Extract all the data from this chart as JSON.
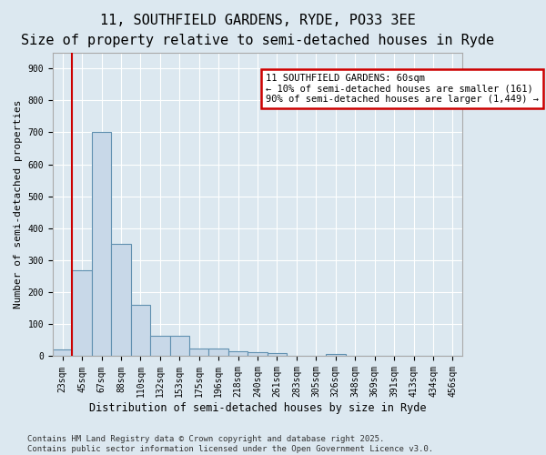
{
  "title_line1": "11, SOUTHFIELD GARDENS, RYDE, PO33 3EE",
  "title_line2": "Size of property relative to semi-detached houses in Ryde",
  "xlabel": "Distribution of semi-detached houses by size in Ryde",
  "ylabel": "Number of semi-detached properties",
  "bins": [
    "23sqm",
    "45sqm",
    "67sqm",
    "88sqm",
    "110sqm",
    "132sqm",
    "153sqm",
    "175sqm",
    "196sqm",
    "218sqm",
    "240sqm",
    "261sqm",
    "283sqm",
    "305sqm",
    "326sqm",
    "348sqm",
    "369sqm",
    "391sqm",
    "413sqm",
    "434sqm",
    "456sqm"
  ],
  "values": [
    20,
    270,
    700,
    350,
    160,
    65,
    65,
    25,
    25,
    15,
    12,
    10,
    0,
    0,
    8,
    0,
    0,
    0,
    0,
    0,
    0
  ],
  "bar_color": "#c8d8e8",
  "bar_edge_color": "#6090b0",
  "bar_edge_width": 0.8,
  "background_color": "#dce8f0",
  "grid_color": "#ffffff",
  "red_line_x": 0.5,
  "annotation_text": "11 SOUTHFIELD GARDENS: 60sqm\n← 10% of semi-detached houses are smaller (161)\n90% of semi-detached houses are larger (1,449) →",
  "annotation_box_color": "#ffffff",
  "annotation_box_edge_color": "#cc0000",
  "ylim": [
    0,
    950
  ],
  "yticks": [
    0,
    100,
    200,
    300,
    400,
    500,
    600,
    700,
    800,
    900
  ],
  "footer_text": "Contains HM Land Registry data © Crown copyright and database right 2025.\nContains public sector information licensed under the Open Government Licence v3.0.",
  "title_fontsize": 11,
  "subtitle_fontsize": 9.5,
  "tick_fontsize": 7,
  "ylabel_fontsize": 8,
  "xlabel_fontsize": 8.5,
  "footer_fontsize": 6.5,
  "ann_fontsize": 7.5
}
